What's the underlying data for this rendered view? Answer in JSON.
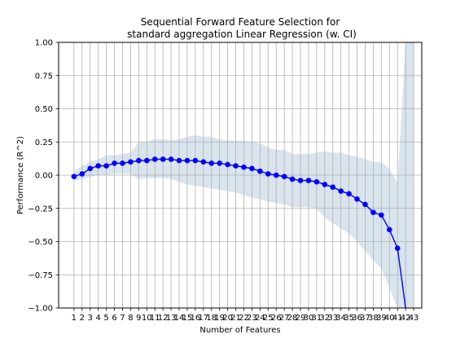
{
  "chart_data": {
    "type": "line",
    "title": [
      "Sequential Forward Feature Selection for",
      "standard aggregation Linear Regression (w. CI)"
    ],
    "xlabel": "Number of Features",
    "ylabel": "Performance (R^2)",
    "x": [
      1,
      2,
      3,
      4,
      5,
      6,
      7,
      8,
      9,
      10,
      11,
      12,
      13,
      14,
      15,
      16,
      17,
      18,
      19,
      20,
      21,
      22,
      23,
      24,
      25,
      26,
      27,
      28,
      29,
      30,
      31,
      32,
      33,
      34,
      35,
      36,
      37,
      38,
      39,
      40,
      41,
      42,
      43
    ],
    "xlim": [
      -0.9,
      44.0
    ],
    "ylim": [
      -1.0,
      1.0
    ],
    "yticks": [
      -1.0,
      -0.75,
      -0.5,
      -0.25,
      0.0,
      0.25,
      0.5,
      0.75,
      1.0
    ],
    "ytick_labels": [
      "−1.00",
      "−0.75",
      "−0.50",
      "−0.25",
      "0.00",
      "0.25",
      "0.50",
      "0.75",
      "1.00"
    ],
    "xtick_labels": [
      "1",
      "2",
      "3",
      "4",
      "5",
      "6",
      "7",
      "8",
      "9",
      "10",
      "11",
      "12",
      "13",
      "14",
      "15",
      "16",
      "17",
      "18",
      "19",
      "20",
      "21",
      "22",
      "23",
      "24",
      "25",
      "26",
      "27",
      "28",
      "29",
      "30",
      "31",
      "32",
      "33",
      "34",
      "35",
      "36",
      "37",
      "38",
      "39",
      "40",
      "41",
      "42",
      "43"
    ],
    "grid": true,
    "series": [
      {
        "name": "",
        "color": "#0000ff",
        "x": [
          1,
          2,
          3,
          4,
          5,
          6,
          7,
          8,
          9,
          10,
          11,
          12,
          13,
          14,
          15,
          16,
          17,
          18,
          19,
          20,
          21,
          22,
          23,
          24,
          25,
          26,
          27,
          28,
          29,
          30,
          31,
          32,
          33,
          34,
          35,
          36,
          37,
          38,
          39,
          40,
          41,
          42
        ],
        "values": [
          -0.01,
          0.01,
          0.05,
          0.07,
          0.07,
          0.09,
          0.09,
          0.1,
          0.11,
          0.11,
          0.12,
          0.12,
          0.12,
          0.11,
          0.11,
          0.11,
          0.1,
          0.09,
          0.09,
          0.08,
          0.07,
          0.06,
          0.05,
          0.03,
          0.01,
          0.0,
          -0.01,
          -0.03,
          -0.04,
          -0.04,
          -0.05,
          -0.07,
          -0.09,
          -0.12,
          -0.14,
          -0.18,
          -0.22,
          -0.28,
          -0.3,
          -0.41,
          -0.55,
          -1.0
        ],
        "markers": [
          1,
          2,
          3,
          4,
          5,
          6,
          7,
          8,
          9,
          10,
          11,
          12,
          13,
          14,
          15,
          16,
          17,
          18,
          19,
          20,
          21,
          22,
          23,
          24,
          25,
          26,
          27,
          28,
          29,
          30,
          31,
          32,
          33,
          34,
          35,
          36,
          37,
          38,
          39,
          40,
          41
        ]
      }
    ],
    "ci_band": {
      "color": "#c9d8e6",
      "x": [
        1,
        2,
        3,
        4,
        5,
        6,
        7,
        8,
        9,
        10,
        11,
        12,
        13,
        14,
        15,
        16,
        17,
        18,
        19,
        20,
        21,
        22,
        23,
        24,
        25,
        26,
        27,
        28,
        29,
        30,
        31,
        32,
        33,
        34,
        35,
        36,
        37,
        38,
        39,
        40,
        41,
        42,
        43
      ],
      "upper": [
        0.03,
        0.07,
        0.1,
        0.12,
        0.15,
        0.15,
        0.16,
        0.17,
        0.25,
        0.25,
        0.27,
        0.27,
        0.26,
        0.27,
        0.29,
        0.3,
        0.29,
        0.29,
        0.27,
        0.26,
        0.26,
        0.26,
        0.25,
        0.24,
        0.21,
        0.19,
        0.19,
        0.16,
        0.16,
        0.16,
        0.17,
        0.18,
        0.17,
        0.17,
        0.15,
        0.14,
        0.12,
        0.1,
        0.1,
        0.05,
        -0.06,
        1.0,
        1.0
      ],
      "lower": [
        -0.04,
        -0.03,
        -0.01,
        0.0,
        0.0,
        0.01,
        0.01,
        0.01,
        -0.03,
        -0.02,
        -0.02,
        -0.02,
        -0.03,
        -0.05,
        -0.07,
        -0.08,
        -0.09,
        -0.1,
        -0.11,
        -0.12,
        -0.13,
        -0.15,
        -0.17,
        -0.18,
        -0.2,
        -0.21,
        -0.22,
        -0.24,
        -0.24,
        -0.24,
        -0.25,
        -0.32,
        -0.36,
        -0.4,
        -0.44,
        -0.5,
        -0.57,
        -0.64,
        -0.7,
        -0.85,
        -1.0,
        -1.0,
        -1.0
      ]
    }
  }
}
